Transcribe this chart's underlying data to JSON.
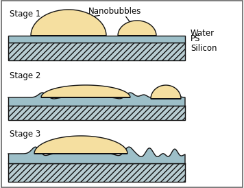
{
  "bg_color": "#ffffff",
  "bubble_fill": "#f5dfa0",
  "bubble_edge": "#111111",
  "ps_fill": "#9dbfc8",
  "ps_edge": "#111111",
  "silicon_fill": "#b8cdd2",
  "silicon_hatch": "////",
  "water_label": "Water",
  "ps_label": "PS",
  "silicon_label": "Silicon",
  "stage1_label": "Stage 1",
  "stage2_label": "Stage 2",
  "stage3_label": "Stage 3",
  "nanobubbles_label": "Nanobubbles",
  "label_fontsize": 8.5,
  "border_color": "#666666",
  "line_width": 1.0
}
